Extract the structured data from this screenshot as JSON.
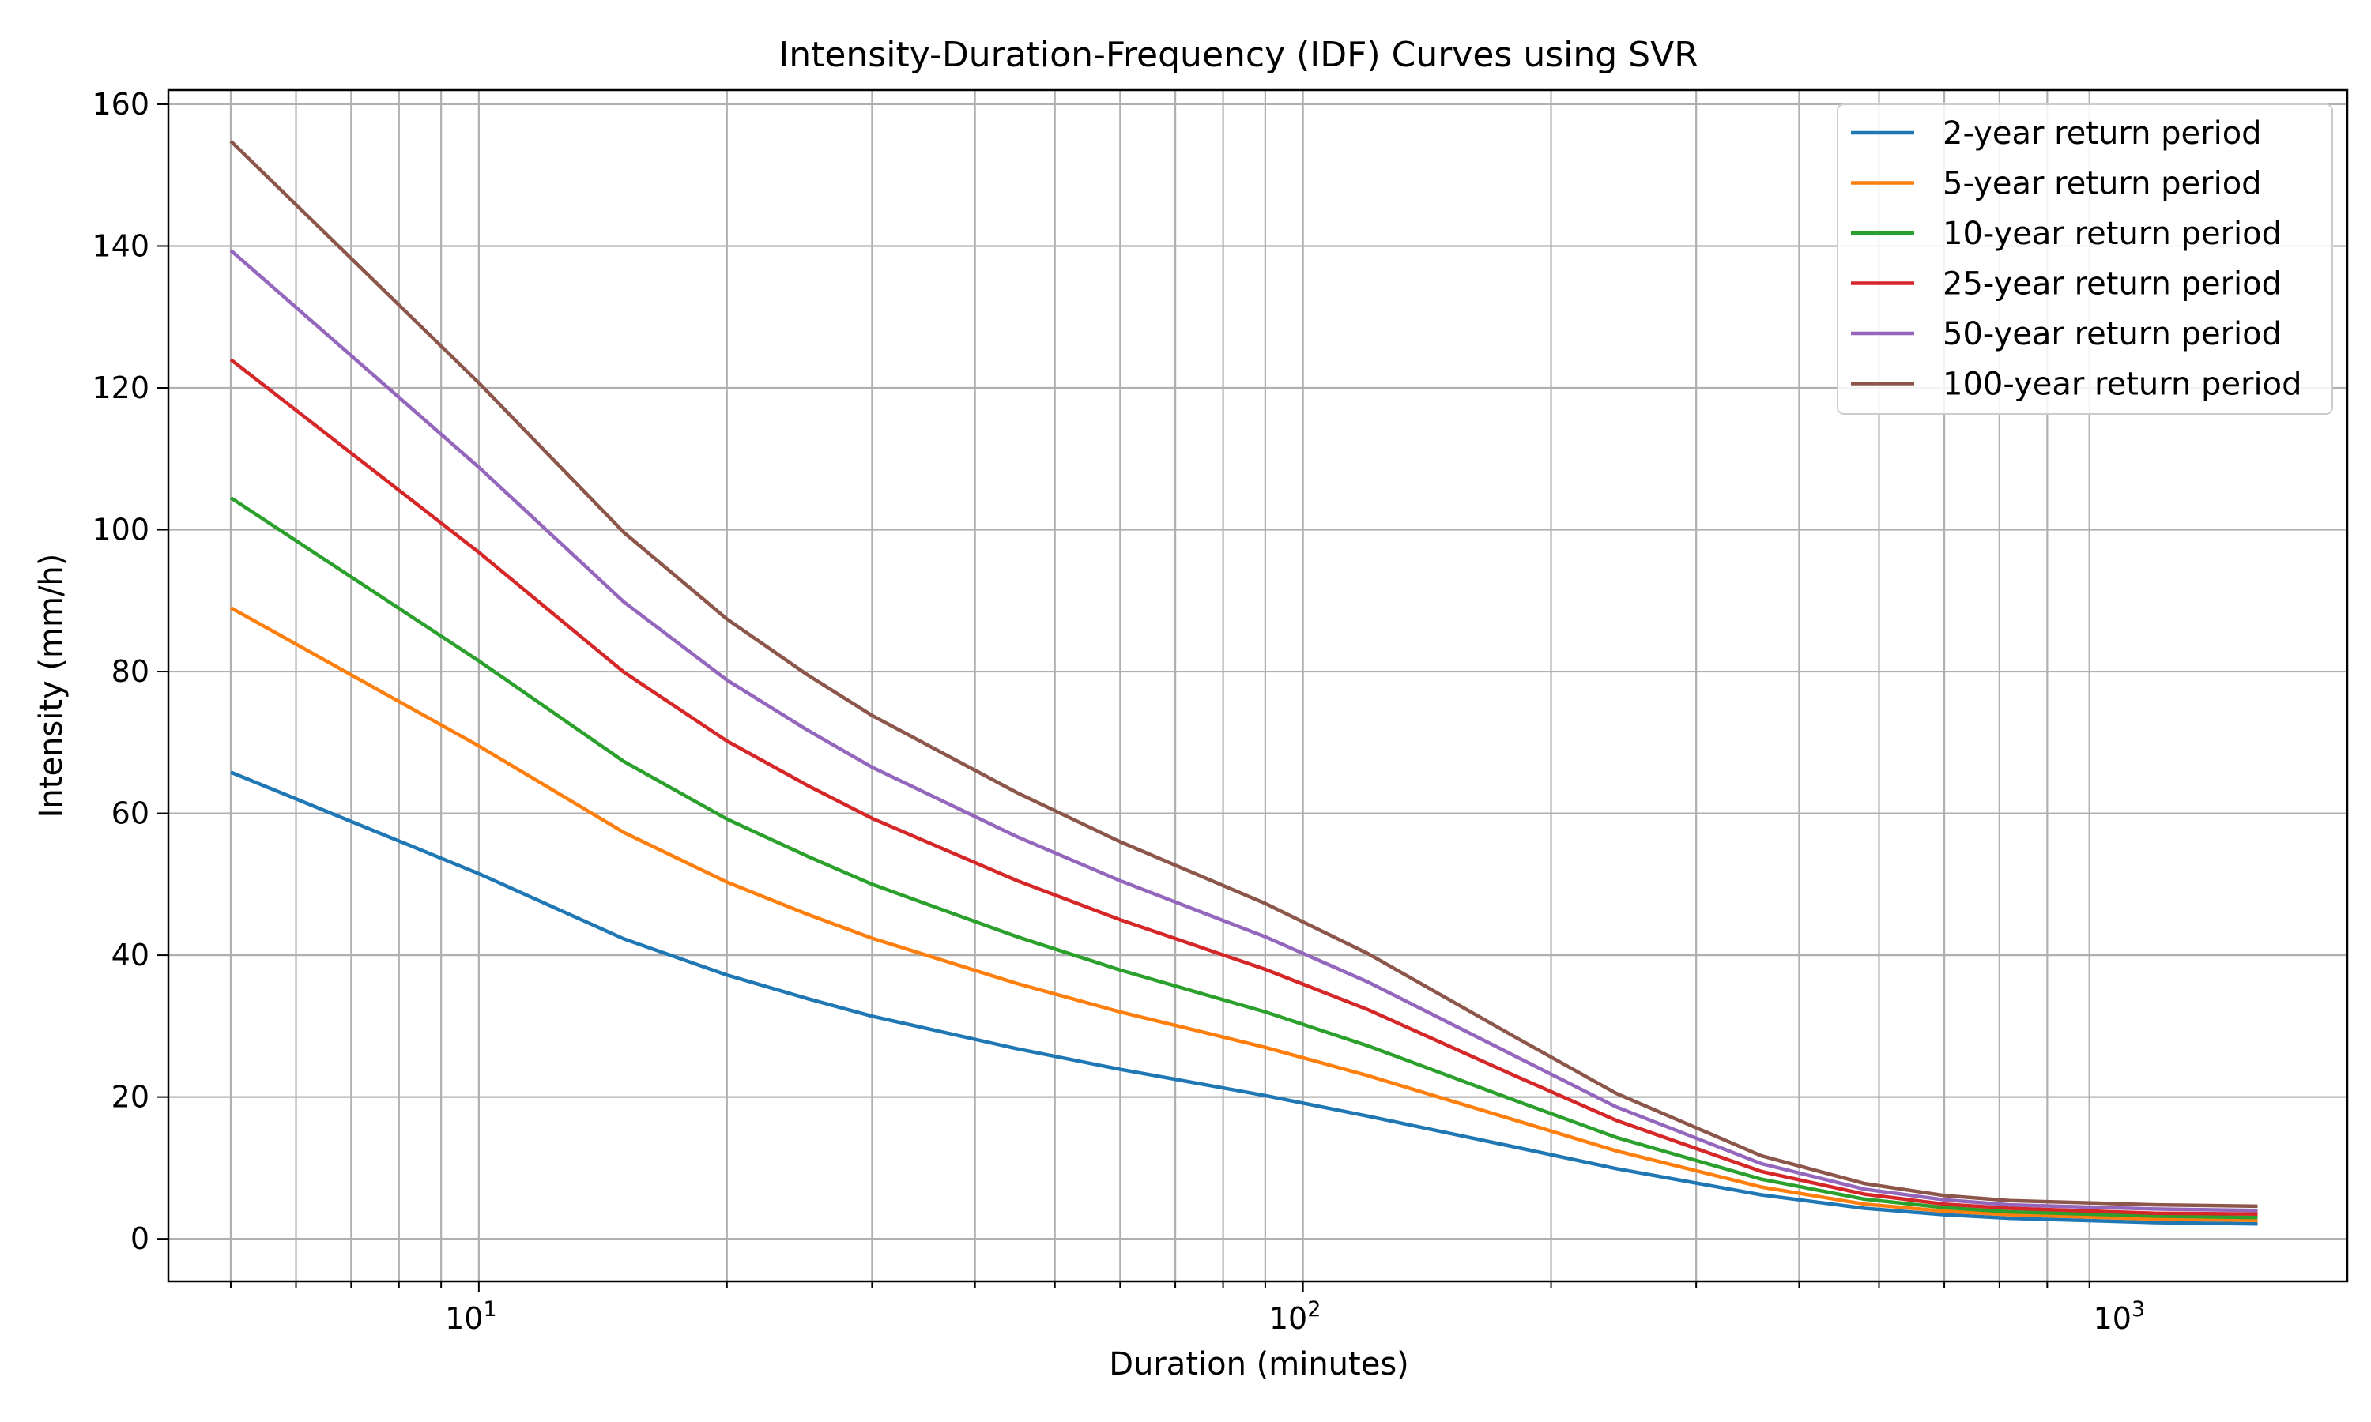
{
  "chart_data": {
    "type": "line",
    "title": "Intensity-Duration-Frequency (IDF) Curves using SVR",
    "xlabel": "Duration (minutes)",
    "ylabel": "Intensity (mm/h)",
    "x_scale": "log",
    "xlim": [
      4.2,
      1850
    ],
    "ylim": [
      -6,
      162
    ],
    "grid": "both",
    "legend_position": "top-right",
    "x_ticks": [
      {
        "value": 10,
        "base": "10",
        "exp": "1"
      },
      {
        "value": 100,
        "base": "10",
        "exp": "2"
      },
      {
        "value": 1000,
        "base": "10",
        "exp": "3"
      }
    ],
    "y_ticks": [
      0,
      20,
      40,
      60,
      80,
      100,
      120,
      140,
      160
    ],
    "x": [
      5,
      10,
      15,
      20,
      25,
      30,
      45,
      60,
      90,
      120,
      180,
      240,
      360,
      480,
      600,
      720,
      1080,
      1440
    ],
    "series": [
      {
        "name": "2-year return period",
        "color": "#1f77b4",
        "values": [
          65.8,
          51.5,
          42.3,
          37.2,
          33.9,
          31.4,
          26.8,
          23.9,
          20.2,
          17.3,
          13.0,
          9.9,
          6.2,
          4.3,
          3.4,
          2.9,
          2.3,
          2.1
        ]
      },
      {
        "name": "5-year return period",
        "color": "#ff7f0e",
        "values": [
          89.0,
          69.5,
          57.3,
          50.3,
          45.8,
          42.4,
          36.0,
          32.0,
          27.0,
          23.0,
          16.8,
          12.4,
          7.3,
          4.9,
          3.9,
          3.4,
          2.8,
          2.6
        ]
      },
      {
        "name": "10-year return period",
        "color": "#2ca02c",
        "values": [
          104.5,
          81.5,
          67.3,
          59.2,
          54.0,
          50.0,
          42.6,
          37.9,
          32.0,
          27.2,
          19.6,
          14.3,
          8.4,
          5.6,
          4.4,
          3.8,
          3.2,
          3.0
        ]
      },
      {
        "name": "25-year return period",
        "color": "#d62728",
        "values": [
          124.0,
          96.8,
          79.9,
          70.2,
          64.0,
          59.3,
          50.5,
          45.0,
          38.0,
          32.3,
          23.1,
          16.7,
          9.5,
          6.3,
          4.9,
          4.3,
          3.6,
          3.5
        ]
      },
      {
        "name": "50-year return period",
        "color": "#9467bd",
        "values": [
          139.4,
          108.8,
          89.8,
          78.8,
          71.8,
          66.5,
          56.7,
          50.5,
          42.6,
          36.2,
          25.9,
          18.6,
          10.6,
          7.0,
          5.5,
          4.8,
          4.2,
          4.0
        ]
      },
      {
        "name": "100-year return period",
        "color": "#8c564b",
        "values": [
          154.8,
          120.7,
          99.6,
          87.4,
          79.6,
          73.8,
          62.9,
          56.0,
          47.3,
          40.2,
          28.6,
          20.5,
          11.7,
          7.8,
          6.1,
          5.4,
          4.8,
          4.6
        ]
      }
    ]
  }
}
